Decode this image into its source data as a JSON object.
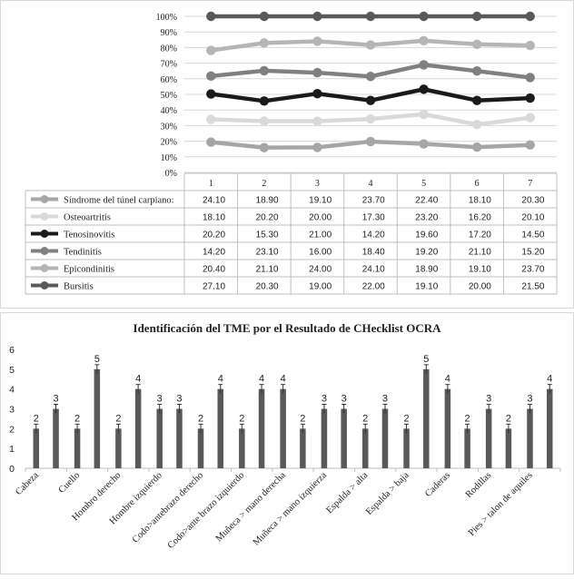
{
  "chart_data": [
    {
      "type": "line",
      "categories": [
        "1",
        "2",
        "3",
        "4",
        "5",
        "6",
        "7"
      ],
      "y_ticks": [
        "0%",
        "10%",
        "20%",
        "30%",
        "40%",
        "50%",
        "60%",
        "70%",
        "80%",
        "90%",
        "100%"
      ],
      "ylim": [
        0,
        100
      ],
      "stacked_percent": true,
      "series": [
        {
          "name": "Síndrome del túnel carpiano:",
          "color": "#a6a6a6",
          "values": [
            24.1,
            18.9,
            19.1,
            23.7,
            22.4,
            18.1,
            20.3
          ],
          "display": [
            "24.10",
            "18.90",
            "19.10",
            "23.70",
            "22.40",
            "18.10",
            "20.30"
          ]
        },
        {
          "name": "Osteoartritis",
          "color": "#d9d9d9",
          "values": [
            18.1,
            20.2,
            20.0,
            17.3,
            23.2,
            16.2,
            20.1
          ],
          "display": [
            "18.10",
            "20.20",
            "20.00",
            "17.30",
            "23.20",
            "16.20",
            "20.10"
          ]
        },
        {
          "name": "Tenosinovitis",
          "color": "#1a1a1a",
          "values": [
            20.2,
            15.3,
            21.0,
            14.2,
            19.6,
            17.2,
            14.5
          ],
          "display": [
            "20.20",
            "15.30",
            "21.00",
            "14.20",
            "19.60",
            "17.20",
            "14.50"
          ]
        },
        {
          "name": "Tendinitis",
          "color": "#808080",
          "values": [
            14.2,
            23.1,
            16.0,
            18.4,
            19.2,
            21.1,
            15.2
          ],
          "display": [
            "14.20",
            "23.10",
            "16.00",
            "18.40",
            "19.20",
            "21.10",
            "15.20"
          ]
        },
        {
          "name": "Epicondinitis",
          "color": "#b5b5b5",
          "values": [
            20.4,
            21.1,
            24.0,
            24.1,
            18.9,
            19.1,
            23.7
          ],
          "display": [
            "20.40",
            "21.10",
            "24.00",
            "24.10",
            "18.90",
            "19.10",
            "23.70"
          ]
        },
        {
          "name": "Bursitis",
          "color": "#595959",
          "values": [
            27.1,
            20.3,
            19.0,
            22.0,
            19.1,
            20.0,
            21.5
          ],
          "display": [
            "27.10",
            "20.30",
            "19.00",
            "22.00",
            "19.10",
            "20.00",
            "21.50"
          ]
        }
      ],
      "grid": true,
      "legend": "data-table"
    },
    {
      "type": "bar",
      "title": "Identificación del TME por el Resultado de CHecklist OCRA",
      "ylim": [
        0,
        6
      ],
      "y_ticks": [
        "0",
        "1",
        "2",
        "3",
        "4",
        "5",
        "6"
      ],
      "bar_color": "#595959",
      "error_bars": true,
      "groups": [
        {
          "label": "Cabeza",
          "values": [
            2,
            3
          ]
        },
        {
          "label": "Cuello",
          "values": [
            2,
            5
          ]
        },
        {
          "label": "Hombro derecho",
          "values": [
            2,
            4
          ]
        },
        {
          "label": "Hombre izquierdo",
          "values": [
            3,
            3
          ]
        },
        {
          "label": "Codo>antebrazo derecho",
          "values": [
            2,
            4
          ]
        },
        {
          "label": "Codo>ante brazo izquierdo",
          "values": [
            2,
            4
          ]
        },
        {
          "label": "Muñeca > mano derecha",
          "values": [
            4,
            2
          ]
        },
        {
          "label": "Muñeca > mano izquierza",
          "values": [
            3,
            3
          ]
        },
        {
          "label": "Espalda > alta",
          "values": [
            2,
            3
          ]
        },
        {
          "label": "Espalda > baja",
          "values": [
            2,
            5
          ]
        },
        {
          "label": "Caderas",
          "values": [
            4,
            2
          ]
        },
        {
          "label": "Rodillas",
          "values": [
            3,
            2
          ]
        },
        {
          "label": "Pies > talon de aquiles",
          "values": [
            3,
            4
          ]
        }
      ]
    }
  ]
}
